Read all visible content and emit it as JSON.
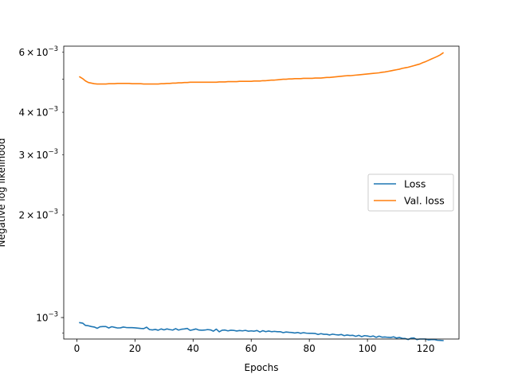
{
  "chart_data": {
    "type": "line",
    "title": "",
    "xlabel": "Epochs",
    "ylabel": "Negative log likelihood",
    "yscale": "log",
    "xlim": [
      -4.5,
      131.5
    ],
    "ylim": [
      0.000865,
      0.00625
    ],
    "x_ticks": [
      0,
      20,
      40,
      60,
      80,
      100,
      120
    ],
    "x_tick_labels": [
      "0",
      "20",
      "40",
      "60",
      "80",
      "100",
      "120"
    ],
    "y_major_ticks": [
      0.001
    ],
    "y_major_labels": [
      {
        "base": "10",
        "exp": "−3"
      }
    ],
    "y_minor_ticks": [
      0.002,
      0.003,
      0.004,
      0.006
    ],
    "y_minor_labels": [
      {
        "coef": "2",
        "base": "10",
        "exp": "−3"
      },
      {
        "coef": "3",
        "base": "10",
        "exp": "−3"
      },
      {
        "coef": "4",
        "base": "10",
        "exp": "−3"
      },
      {
        "coef": "6",
        "base": "10",
        "exp": "−3"
      }
    ],
    "extra_minor_ticks": [
      0.0009,
      0.005
    ],
    "legend": {
      "position": "center-right"
    },
    "series": [
      {
        "name": "Loss",
        "color": "#1f77b4",
        "x": [
          1,
          2,
          3,
          4,
          5,
          6,
          7,
          8,
          9,
          10,
          11,
          12,
          13,
          14,
          15,
          16,
          17,
          18,
          19,
          20,
          21,
          22,
          23,
          24,
          25,
          26,
          27,
          28,
          29,
          30,
          31,
          32,
          33,
          34,
          35,
          36,
          37,
          38,
          39,
          40,
          41,
          42,
          43,
          44,
          45,
          46,
          47,
          48,
          49,
          50,
          51,
          52,
          53,
          54,
          55,
          56,
          57,
          58,
          59,
          60,
          61,
          62,
          63,
          64,
          65,
          66,
          67,
          68,
          69,
          70,
          71,
          72,
          73,
          74,
          75,
          76,
          77,
          78,
          79,
          80,
          81,
          82,
          83,
          84,
          85,
          86,
          87,
          88,
          89,
          90,
          91,
          92,
          93,
          94,
          95,
          96,
          97,
          98,
          99,
          100,
          101,
          102,
          103,
          104,
          105,
          106,
          107,
          108,
          109,
          110,
          111,
          112,
          113,
          114,
          115,
          116,
          117,
          118,
          119,
          120,
          121,
          122,
          123,
          124,
          125,
          126
        ],
        "values": [
          0.000966,
          0.000963,
          0.000948,
          0.000946,
          0.000941,
          0.000938,
          0.00093,
          0.00094,
          0.000941,
          0.000941,
          0.000932,
          0.00094,
          0.000936,
          0.000932,
          0.000933,
          0.000938,
          0.000935,
          0.000934,
          0.000934,
          0.000933,
          0.000931,
          0.000929,
          0.000928,
          0.000937,
          0.000922,
          0.00092,
          0.000923,
          0.000918,
          0.000926,
          0.00092,
          0.000926,
          0.000922,
          0.000919,
          0.000928,
          0.000919,
          0.000924,
          0.000926,
          0.000929,
          0.000917,
          0.000921,
          0.000926,
          0.000919,
          0.000918,
          0.000919,
          0.000922,
          0.00092,
          0.000912,
          0.000925,
          0.000908,
          0.000918,
          0.000919,
          0.000914,
          0.000918,
          0.000917,
          0.000913,
          0.000916,
          0.000914,
          0.000917,
          0.000912,
          0.000914,
          0.000912,
          0.000916,
          0.000907,
          0.000915,
          0.000909,
          0.000913,
          0.000909,
          0.000911,
          0.000909,
          0.000909,
          0.000903,
          0.000907,
          0.000905,
          0.000904,
          0.000901,
          0.000904,
          0.000899,
          0.000903,
          0.0009,
          0.000899,
          0.000899,
          0.000898,
          0.000892,
          0.000897,
          0.000893,
          0.000893,
          0.000889,
          0.000894,
          0.000891,
          0.000889,
          0.000892,
          0.000885,
          0.000889,
          0.000886,
          0.000887,
          0.000881,
          0.000887,
          0.000879,
          0.000885,
          0.000883,
          0.000879,
          0.000883,
          0.000875,
          0.000882,
          0.000876,
          0.000877,
          0.000875,
          0.000874,
          0.000878,
          0.000871,
          0.000874,
          0.000869,
          0.000868,
          0.000862,
          0.00087,
          0.000871,
          0.000862,
          0.000865,
          0.000865,
          0.000865,
          0.00086,
          0.000862,
          0.000862,
          0.000858,
          0.000857,
          0.000856
        ]
      },
      {
        "name": "Val. loss",
        "color": "#ff7f0e",
        "x": [
          1,
          2,
          3,
          4,
          5,
          6,
          7,
          8,
          9,
          10,
          11,
          12,
          13,
          14,
          15,
          16,
          17,
          18,
          19,
          20,
          21,
          22,
          23,
          24,
          25,
          26,
          27,
          28,
          29,
          30,
          31,
          32,
          33,
          34,
          35,
          36,
          37,
          38,
          39,
          40,
          41,
          42,
          43,
          44,
          45,
          46,
          47,
          48,
          49,
          50,
          51,
          52,
          53,
          54,
          55,
          56,
          57,
          58,
          59,
          60,
          61,
          62,
          63,
          64,
          65,
          66,
          67,
          68,
          69,
          70,
          71,
          72,
          73,
          74,
          75,
          76,
          77,
          78,
          79,
          80,
          81,
          82,
          83,
          84,
          85,
          86,
          87,
          88,
          89,
          90,
          91,
          92,
          93,
          94,
          95,
          96,
          97,
          98,
          99,
          100,
          101,
          102,
          103,
          104,
          105,
          106,
          107,
          108,
          109,
          110,
          111,
          112,
          113,
          114,
          115,
          116,
          117,
          118,
          119,
          120,
          121,
          122,
          123,
          124,
          125,
          126
        ],
        "values": [
          0.00508,
          0.00502,
          0.00494,
          0.00489,
          0.00487,
          0.00485,
          0.00484,
          0.00484,
          0.00484,
          0.00484,
          0.00485,
          0.00485,
          0.00485,
          0.00486,
          0.00486,
          0.00486,
          0.00486,
          0.00486,
          0.00485,
          0.00485,
          0.00485,
          0.00485,
          0.00484,
          0.00484,
          0.00484,
          0.00484,
          0.00484,
          0.00484,
          0.00485,
          0.00485,
          0.00486,
          0.00486,
          0.00487,
          0.00487,
          0.00488,
          0.00488,
          0.00489,
          0.00489,
          0.0049,
          0.0049,
          0.0049,
          0.0049,
          0.0049,
          0.0049,
          0.0049,
          0.0049,
          0.0049,
          0.0049,
          0.00491,
          0.00491,
          0.00491,
          0.00492,
          0.00492,
          0.00492,
          0.00492,
          0.00493,
          0.00493,
          0.00493,
          0.00493,
          0.00493,
          0.00494,
          0.00494,
          0.00494,
          0.00495,
          0.00495,
          0.00496,
          0.00497,
          0.00497,
          0.00498,
          0.00499,
          0.005,
          0.005,
          0.00501,
          0.00501,
          0.00502,
          0.00502,
          0.00502,
          0.00503,
          0.00503,
          0.00503,
          0.00503,
          0.00504,
          0.00504,
          0.00504,
          0.00505,
          0.00506,
          0.00506,
          0.00507,
          0.00508,
          0.00509,
          0.0051,
          0.00511,
          0.00512,
          0.00512,
          0.00513,
          0.00514,
          0.00515,
          0.00516,
          0.00517,
          0.00518,
          0.00519,
          0.0052,
          0.00521,
          0.00522,
          0.00524,
          0.00525,
          0.00527,
          0.00529,
          0.00531,
          0.00533,
          0.00535,
          0.00538,
          0.0054,
          0.00542,
          0.00545,
          0.00548,
          0.00551,
          0.00554,
          0.00559,
          0.00563,
          0.00568,
          0.00573,
          0.00578,
          0.00583,
          0.00589,
          0.00597
        ]
      }
    ]
  }
}
